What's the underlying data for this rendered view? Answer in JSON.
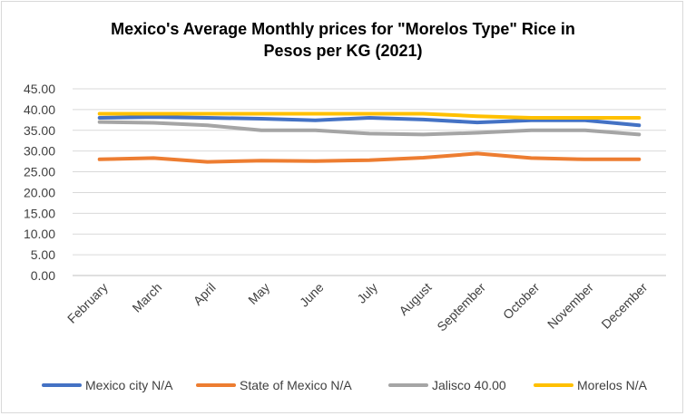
{
  "chart_data": {
    "type": "line",
    "title_line1": "Mexico's Average Monthly prices for \"Morelos Type\" Rice in",
    "title_line2": "Pesos per KG (2021)",
    "categories": [
      "February",
      "March",
      "April",
      "May",
      "June",
      "July",
      "August",
      "September",
      "October",
      "November",
      "December"
    ],
    "ylim": [
      0,
      45
    ],
    "yticks": [
      "0.00",
      "5.00",
      "10.00",
      "15.00",
      "20.00",
      "25.00",
      "30.00",
      "35.00",
      "40.00",
      "45.00"
    ],
    "grid": true,
    "legend_position": "bottom",
    "series": [
      {
        "name": "Mexico city N/A",
        "color": "#4472C4",
        "values": [
          38.0,
          38.2,
          38.0,
          37.8,
          37.4,
          38.0,
          37.6,
          36.9,
          37.4,
          37.4,
          36.2
        ]
      },
      {
        "name": "State of Mexico N/A",
        "color": "#ED7D31",
        "values": [
          28.0,
          28.3,
          27.4,
          27.7,
          27.6,
          27.8,
          28.4,
          29.4,
          28.3,
          28.0,
          28.0
        ]
      },
      {
        "name": "Jalisco 40.00",
        "color": "#A5A5A5",
        "values": [
          37.0,
          36.8,
          36.2,
          35.0,
          35.0,
          34.2,
          34.0,
          34.4,
          35.0,
          35.0,
          34.0
        ]
      },
      {
        "name": "Morelos N/A",
        "color": "#FFC000",
        "values": [
          39.0,
          39.0,
          39.0,
          39.0,
          39.0,
          39.0,
          39.0,
          38.4,
          38.0,
          38.0,
          38.0
        ]
      }
    ]
  }
}
